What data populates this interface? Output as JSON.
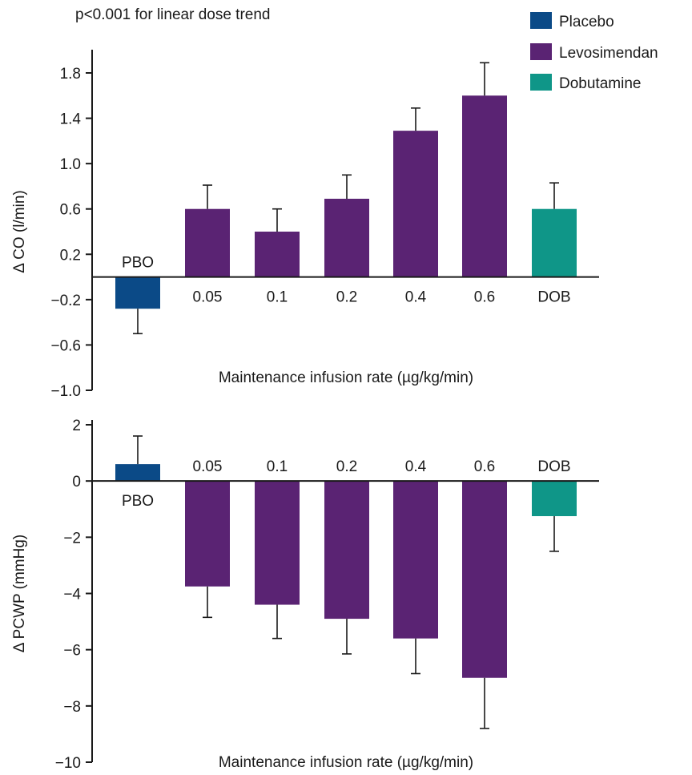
{
  "annotation": "p<0.001 for linear dose trend",
  "legend": [
    {
      "label": "Placebo",
      "color": "#0b4a87"
    },
    {
      "label": "Levosimendan",
      "color": "#5a2373"
    },
    {
      "label": "Dobutamine",
      "color": "#0f9688"
    }
  ],
  "chart_data": [
    {
      "type": "bar",
      "categories": [
        "PBO",
        "0.05",
        "0.1",
        "0.2",
        "0.4",
        "0.6",
        "DOB"
      ],
      "groups": [
        "Placebo",
        "Levosimendan",
        "Levosimendan",
        "Levosimendan",
        "Levosimendan",
        "Levosimendan",
        "Dobutamine"
      ],
      "values": [
        -0.28,
        0.6,
        0.4,
        0.69,
        1.29,
        1.6,
        0.6
      ],
      "error_bars": [
        0.22,
        0.21,
        0.2,
        0.21,
        0.2,
        0.29,
        0.23
      ],
      "ylabel": "Δ CO (l/min)",
      "xlabel": "Maintenance infusion rate (µg/kg/min)",
      "ylim": [
        -1.0,
        2.0
      ],
      "yticks": [
        "1.8",
        "1.4",
        "1.0",
        "0.6",
        "0.2",
        "−0.2",
        "−0.6",
        "−1.0"
      ],
      "ytick_values": [
        1.8,
        1.4,
        1.0,
        0.6,
        0.2,
        -0.2,
        -0.6,
        -1.0
      ]
    },
    {
      "type": "bar",
      "categories": [
        "PBO",
        "0.05",
        "0.1",
        "0.2",
        "0.4",
        "0.6",
        "DOB"
      ],
      "groups": [
        "Placebo",
        "Levosimendan",
        "Levosimendan",
        "Levosimendan",
        "Levosimendan",
        "Levosimendan",
        "Dobutamine"
      ],
      "values": [
        0.6,
        -3.75,
        -4.4,
        -4.9,
        -5.6,
        -7.0,
        -1.25
      ],
      "error_bars": [
        1.0,
        1.1,
        1.2,
        1.25,
        1.25,
        1.8,
        1.25
      ],
      "ylabel": "Δ PCWP (mmHg)",
      "xlabel": "Maintenance infusion rate (µg/kg/min)",
      "ylim": [
        -10,
        2
      ],
      "yticks": [
        "2",
        "0",
        "−2",
        "−4",
        "−6",
        "−8",
        "−10"
      ],
      "ytick_values": [
        2,
        0,
        -2,
        -4,
        -6,
        -8,
        -10
      ]
    }
  ]
}
